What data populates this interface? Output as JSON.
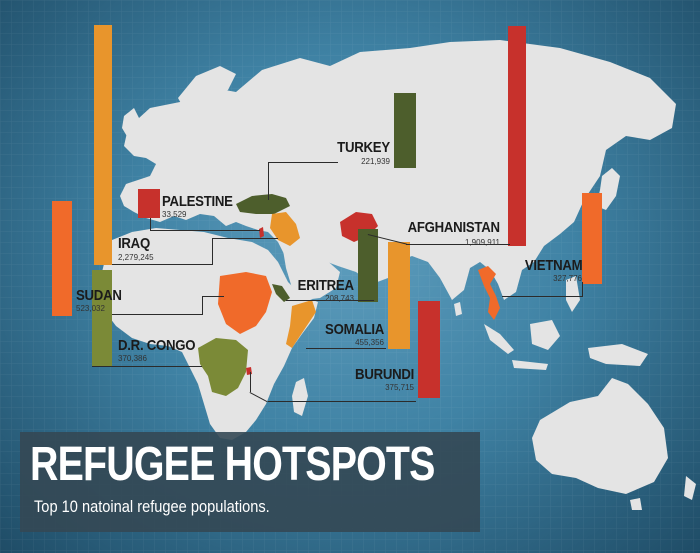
{
  "title": "REFUGEE HOTSPOTS",
  "subtitle": "Top 10 natoinal refugee populations.",
  "colors": {
    "ocean": "#3f82a4",
    "land": "#e4e4e4",
    "orange": "#e8952c",
    "red": "#c7312c",
    "green": "#4d5e2c",
    "olive": "#7b8a37",
    "brightorange": "#f06a2a"
  },
  "chart_data": {
    "type": "bar",
    "title": "REFUGEE HOTSPOTS",
    "subtitle": "Top 10 natoinal refugee populations.",
    "unit": "refugees",
    "countries": [
      {
        "key": "turkey",
        "name": "TURKEY",
        "value_label": "221,939",
        "value": 221939,
        "color": "green"
      },
      {
        "key": "palestine",
        "name": "PALESTINE",
        "value_label": "33,529",
        "value": 33529,
        "color": "red"
      },
      {
        "key": "iraq",
        "name": "IRAQ",
        "value_label": "2,279,245",
        "value": 2279245,
        "color": "orange"
      },
      {
        "key": "afghanistan",
        "name": "AFGHANISTAN",
        "value_label": "1,909,911",
        "value": 1909911,
        "color": "red"
      },
      {
        "key": "sudan",
        "name": "SUDAN",
        "value_label": "523,032",
        "value": 523032,
        "color": "brightorange"
      },
      {
        "key": "eritrea",
        "name": "ERITREA",
        "value_label": "208,743",
        "value": 208743,
        "color": "green"
      },
      {
        "key": "vietnam",
        "name": "VIETNAM",
        "value_label": "327,776",
        "value": 327776,
        "color": "brightorange"
      },
      {
        "key": "somalia",
        "name": "SOMALIA",
        "value_label": "455,356",
        "value": 455356,
        "color": "orange"
      },
      {
        "key": "drcongo",
        "name": "D.R. CONGO",
        "value_label": "370,386",
        "value": 370386,
        "color": "olive"
      },
      {
        "key": "burundi",
        "name": "BURUNDI",
        "value_label": "375,715",
        "value": 375715,
        "color": "red"
      }
    ]
  }
}
